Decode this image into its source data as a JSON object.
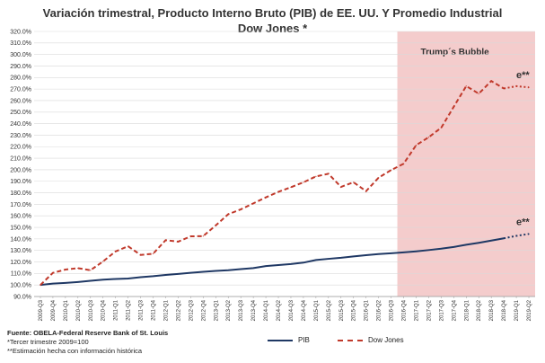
{
  "chart_data": {
    "type": "line",
    "title": "Variación trimestral, Producto Interno Bruto (PIB) de EE. UU. Y Promedio Industrial Dow Jones *",
    "ylim": [
      90,
      320
    ],
    "y_ticks": [
      "90.0%",
      "100.0%",
      "110.0%",
      "120.0%",
      "130.0%",
      "140.0%",
      "150.0%",
      "160.0%",
      "170.0%",
      "180.0%",
      "190.0%",
      "200.0%",
      "210.0%",
      "220.0%",
      "230.0%",
      "240.0%",
      "250.0%",
      "260.0%",
      "270.0%",
      "280.0%",
      "290.0%",
      "300.0%",
      "310.0%",
      "320.0%"
    ],
    "categories": [
      "2009-Q3",
      "2009-Q4",
      "2010-Q1",
      "2010-Q2",
      "2010-Q3",
      "2010-Q4",
      "2011-Q1",
      "2011-Q2",
      "2011-Q3",
      "2011-Q4",
      "2012-Q1",
      "2012-Q2",
      "2012-Q3",
      "2012-Q4",
      "2013-Q1",
      "2013-Q2",
      "2013-Q3",
      "2013-Q4",
      "2014-Q1",
      "2014-Q2",
      "2014-Q3",
      "2014-Q4",
      "2015-Q1",
      "2015-Q2",
      "2015-Q3",
      "2015-Q4",
      "2016-Q1",
      "2016-Q2",
      "2016-Q3",
      "2016-Q4",
      "2017-Q1",
      "2017-Q2",
      "2017-Q3",
      "2017-Q4",
      "2018-Q1",
      "2018-Q2",
      "2018-Q3",
      "2018-Q4",
      "2019-Q1",
      "2019-Q2"
    ],
    "grid": true,
    "band": {
      "label": "Trump´s Bubble",
      "from": "2016-Q4",
      "to": "2019-Q2",
      "color": "#f4cccc"
    },
    "estimate_label": "e**",
    "estimate_from": "2018-Q4",
    "series": [
      {
        "name": "PIB",
        "color": "#1f3864",
        "dash": "solid",
        "values": [
          100,
          101.2,
          101.8,
          102.6,
          103.6,
          104.6,
          105.2,
          105.6,
          106.8,
          107.6,
          108.7,
          109.6,
          110.6,
          111.4,
          112.2,
          112.8,
          113.8,
          114.7,
          116.4,
          117.3,
          118.2,
          119.4,
          121.7,
          122.7,
          123.6,
          124.8,
          125.9,
          126.8,
          127.5,
          128.3,
          129.2,
          130.3,
          131.5,
          133.0,
          134.9,
          136.6,
          138.5,
          140.5,
          142.6,
          144.3
        ]
      },
      {
        "name": "Dow Jones",
        "color": "#c0392b",
        "dash": "dashed",
        "values": [
          100,
          110.5,
          113.4,
          114.6,
          112.8,
          120.4,
          129.1,
          133.6,
          126.1,
          127.1,
          138.9,
          137.6,
          142.2,
          142.4,
          151.7,
          161.4,
          165.6,
          170.8,
          176.0,
          180.8,
          184.8,
          189.1,
          194.2,
          196.5,
          185.1,
          189.1,
          181.4,
          193.1,
          199.7,
          205.2,
          221.3,
          228.2,
          236.4,
          254.6,
          272.6,
          266.0,
          277.0,
          270.5,
          272.5,
          271.5
        ]
      }
    ]
  },
  "footer": {
    "source": "Fuente: OBELA-Federal Reserve Bank of St. Louis",
    "note1": "*Tercer trimestre 2009=100",
    "note2": "**Estimación hecha con información histórica"
  }
}
